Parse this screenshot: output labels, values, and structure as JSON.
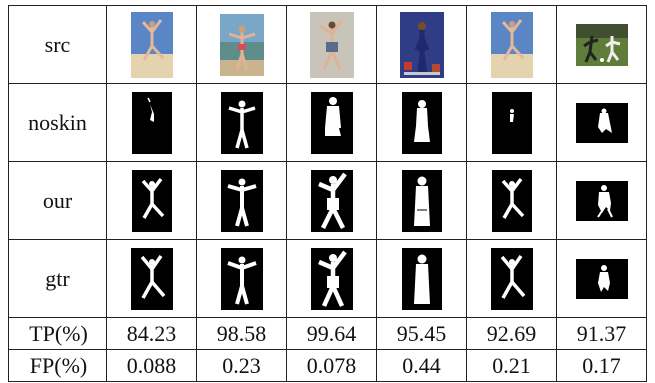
{
  "rows": {
    "src": "src",
    "noskin": "noskin",
    "our": "our",
    "gtr": "gtr",
    "tp": "TP(%)",
    "fp": "FP(%)"
  },
  "tp_values": [
    "84.23",
    "98.58",
    "99.64",
    "95.45",
    "92.69",
    "91.37"
  ],
  "fp_values": [
    "0.088",
    "0.23",
    "0.078",
    "0.44",
    "0.21",
    "0.17"
  ],
  "colors": {
    "border": "#222222",
    "mask_bg": "#000000",
    "mask_fg": "#ffffff"
  }
}
